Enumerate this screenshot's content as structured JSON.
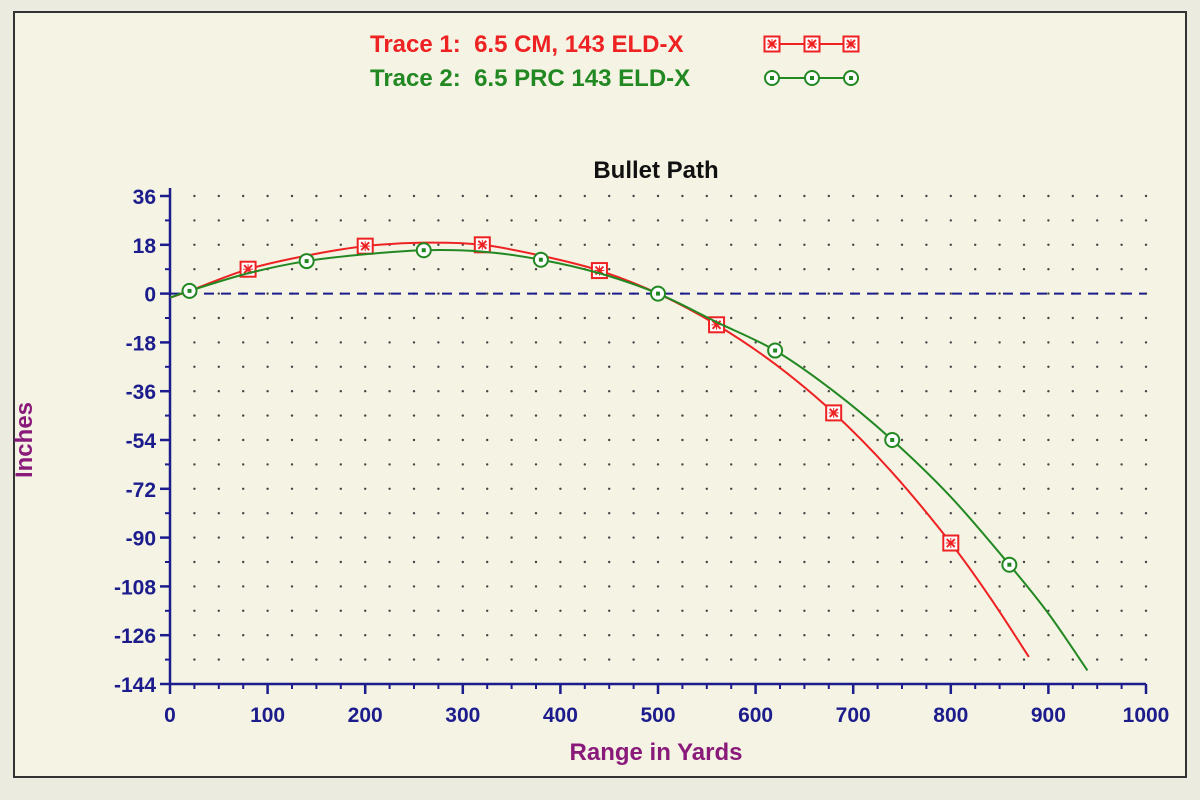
{
  "chart_data": {
    "type": "line",
    "title": "Bullet Path",
    "xlabel": "Range in Yards",
    "ylabel": "Inches",
    "xlim": [
      0,
      1000
    ],
    "ylim": [
      -144,
      36
    ],
    "x_ticks": [
      0,
      100,
      200,
      300,
      400,
      500,
      600,
      700,
      800,
      900,
      1000
    ],
    "y_ticks": [
      36,
      18,
      0,
      -18,
      -36,
      -54,
      -72,
      -90,
      -108,
      -126,
      -144
    ],
    "grid": true,
    "zero_line": 0,
    "legend_position": "top-center",
    "series": [
      {
        "name": "Trace 1:  6.5 CM, 143 ELD-X",
        "color": "#ee2222",
        "marker": "box-x",
        "curve": [
          [
            0,
            -1.5
          ],
          [
            20,
            1
          ],
          [
            80,
            9
          ],
          [
            140,
            14
          ],
          [
            200,
            17.5
          ],
          [
            260,
            18.8
          ],
          [
            320,
            18
          ],
          [
            380,
            14
          ],
          [
            440,
            8.5
          ],
          [
            500,
            0
          ],
          [
            560,
            -11.5
          ],
          [
            620,
            -26
          ],
          [
            680,
            -44
          ],
          [
            740,
            -66
          ],
          [
            800,
            -92
          ],
          [
            840,
            -112
          ],
          [
            880,
            -134
          ]
        ],
        "marked_points": [
          [
            80,
            9
          ],
          [
            200,
            17.5
          ],
          [
            320,
            18
          ],
          [
            440,
            8.5
          ],
          [
            560,
            -11.5
          ],
          [
            680,
            -44
          ],
          [
            800,
            -92
          ]
        ]
      },
      {
        "name": "Trace 2:  6.5 PRC 143 ELD-X",
        "color": "#228822",
        "marker": "circle-dot",
        "curve": [
          [
            0,
            -1.5
          ],
          [
            20,
            1
          ],
          [
            80,
            7.5
          ],
          [
            140,
            12
          ],
          [
            200,
            14.5
          ],
          [
            260,
            16
          ],
          [
            320,
            15.5
          ],
          [
            380,
            12.5
          ],
          [
            440,
            7.5
          ],
          [
            500,
            0
          ],
          [
            560,
            -10.5
          ],
          [
            620,
            -21
          ],
          [
            680,
            -36
          ],
          [
            740,
            -54
          ],
          [
            800,
            -75
          ],
          [
            860,
            -100
          ],
          [
            900,
            -118
          ],
          [
            940,
            -139
          ]
        ],
        "marked_points": [
          [
            20,
            1
          ],
          [
            140,
            12
          ],
          [
            260,
            16
          ],
          [
            380,
            12.5
          ],
          [
            500,
            0
          ],
          [
            620,
            -21
          ],
          [
            740,
            -54
          ],
          [
            860,
            -100
          ]
        ]
      }
    ]
  },
  "colors": {
    "background": "#ecebdf",
    "panel": "#f4f3e4",
    "axis": "#1c1c8c",
    "grid_dots": "#444444",
    "zero_line": "#1c1c8c"
  }
}
